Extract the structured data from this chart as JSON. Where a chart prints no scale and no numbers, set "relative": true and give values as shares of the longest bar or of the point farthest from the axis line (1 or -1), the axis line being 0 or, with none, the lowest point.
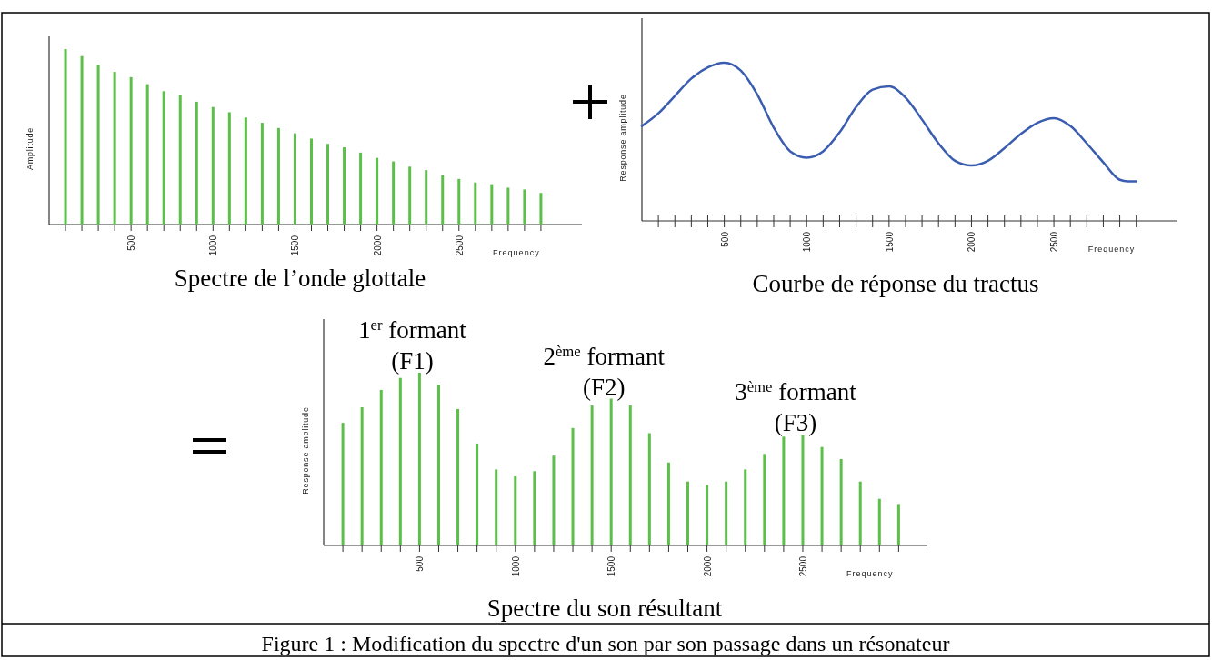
{
  "chart_data": [
    {
      "type": "bar",
      "title": "Spectre de l’onde glottale",
      "xlabel": "Frequency",
      "ylabel": "Amplitude",
      "relative": true,
      "color": "#5cbf4a",
      "xlim": [
        0,
        3250
      ],
      "x": [
        100,
        200,
        300,
        400,
        500,
        600,
        700,
        800,
        900,
        1000,
        1100,
        1200,
        1300,
        1400,
        1500,
        1600,
        1700,
        1800,
        1900,
        2000,
        2100,
        2200,
        2300,
        2400,
        2500,
        2600,
        2700,
        2800,
        2900,
        3000
      ],
      "values": [
        1,
        0.96,
        0.91,
        0.87,
        0.84,
        0.8,
        0.76,
        0.74,
        0.7,
        0.67,
        0.64,
        0.61,
        0.58,
        0.55,
        0.52,
        0.49,
        0.46,
        0.44,
        0.41,
        0.38,
        0.36,
        0.33,
        0.31,
        0.28,
        0.26,
        0.24,
        0.23,
        0.21,
        0.2,
        0.18
      ],
      "xticks": [
        {
          "value": 100,
          "label": null
        },
        {
          "value": 200,
          "label": null
        },
        {
          "value": 300,
          "label": null
        },
        {
          "value": 400,
          "label": null
        },
        500,
        {
          "value": 600,
          "label": null
        },
        {
          "value": 700,
          "label": null
        },
        {
          "value": 800,
          "label": null
        },
        {
          "value": 900,
          "label": null
        },
        1000,
        {
          "value": 1100,
          "label": null
        },
        {
          "value": 1200,
          "label": null
        },
        {
          "value": 1300,
          "label": null
        },
        {
          "value": 1400,
          "label": null
        },
        1500,
        {
          "value": 1600,
          "label": null
        },
        {
          "value": 1700,
          "label": null
        },
        {
          "value": 1800,
          "label": null
        },
        {
          "value": 1900,
          "label": null
        },
        2000,
        {
          "value": 2100,
          "label": null
        },
        {
          "value": 2200,
          "label": null
        },
        {
          "value": 2300,
          "label": null
        },
        {
          "value": 2400,
          "label": null
        },
        2500,
        {
          "value": 2600,
          "label": null
        },
        {
          "value": 2700,
          "label": null
        },
        {
          "value": 2800,
          "label": null
        },
        {
          "value": 2900,
          "label": null
        },
        {
          "value": 3000,
          "label": null
        }
      ]
    },
    {
      "type": "line",
      "title": "Courbe de réponse du tractus",
      "xlabel": "Frequency",
      "ylabel": "Response amplitude",
      "relative": true,
      "color": "#3a5db0",
      "xlim": [
        0,
        3250
      ],
      "x": [
        0,
        100,
        200,
        300,
        400,
        500,
        600,
        700,
        800,
        900,
        1000,
        1100,
        1200,
        1300,
        1400,
        1500,
        1600,
        1700,
        1800,
        1900,
        2000,
        2100,
        2200,
        2300,
        2400,
        2500,
        2600,
        2700,
        2800,
        2900,
        2950,
        3000
      ],
      "values": [
        0.6,
        0.68,
        0.79,
        0.9,
        0.97,
        1,
        0.95,
        0.8,
        0.59,
        0.44,
        0.4,
        0.44,
        0.56,
        0.72,
        0.83,
        0.85,
        0.78,
        0.64,
        0.49,
        0.38,
        0.35,
        0.38,
        0.46,
        0.55,
        0.62,
        0.65,
        0.6,
        0.49,
        0.37,
        0.26,
        0.25,
        0.25
      ],
      "xticks": [
        {
          "value": 100,
          "label": null
        },
        {
          "value": 200,
          "label": null
        },
        {
          "value": 300,
          "label": null
        },
        {
          "value": 400,
          "label": null
        },
        500,
        {
          "value": 600,
          "label": null
        },
        {
          "value": 700,
          "label": null
        },
        {
          "value": 800,
          "label": null
        },
        {
          "value": 900,
          "label": null
        },
        1000,
        {
          "value": 1100,
          "label": null
        },
        {
          "value": 1200,
          "label": null
        },
        {
          "value": 1300,
          "label": null
        },
        {
          "value": 1400,
          "label": null
        },
        1500,
        {
          "value": 1600,
          "label": null
        },
        {
          "value": 1700,
          "label": null
        },
        {
          "value": 1800,
          "label": null
        },
        {
          "value": 1900,
          "label": null
        },
        2000,
        {
          "value": 2100,
          "label": null
        },
        {
          "value": 2200,
          "label": null
        },
        {
          "value": 2300,
          "label": null
        },
        {
          "value": 2400,
          "label": null
        },
        2500,
        {
          "value": 2600,
          "label": null
        },
        {
          "value": 2700,
          "label": null
        },
        {
          "value": 2800,
          "label": null
        },
        {
          "value": 2900,
          "label": null
        },
        {
          "value": 3000,
          "label": null
        }
      ]
    },
    {
      "type": "bar",
      "title": "Spectre du son résultant",
      "xlabel": "Frequency",
      "ylabel": "Response amplitude",
      "relative": true,
      "color": "#5cbf4a",
      "xlim": [
        0,
        3150
      ],
      "x": [
        100,
        200,
        300,
        400,
        500,
        600,
        700,
        800,
        900,
        1000,
        1100,
        1200,
        1300,
        1400,
        1500,
        1600,
        1700,
        1800,
        1900,
        2000,
        2100,
        2200,
        2300,
        2400,
        2500,
        2600,
        2700,
        2800,
        2900,
        3000
      ],
      "values": [
        0.71,
        0.8,
        0.9,
        0.97,
        1,
        0.93,
        0.79,
        0.59,
        0.44,
        0.4,
        0.43,
        0.52,
        0.68,
        0.81,
        0.85,
        0.81,
        0.65,
        0.48,
        0.37,
        0.35,
        0.37,
        0.44,
        0.53,
        0.63,
        0.64,
        0.57,
        0.5,
        0.37,
        0.27,
        0.24
      ],
      "xticks": [
        {
          "value": 100,
          "label": null
        },
        {
          "value": 200,
          "label": null
        },
        {
          "value": 300,
          "label": null
        },
        {
          "value": 400,
          "label": null
        },
        500,
        {
          "value": 600,
          "label": null
        },
        {
          "value": 700,
          "label": null
        },
        {
          "value": 800,
          "label": null
        },
        {
          "value": 900,
          "label": null
        },
        1000,
        {
          "value": 1100,
          "label": null
        },
        {
          "value": 1200,
          "label": null
        },
        {
          "value": 1300,
          "label": null
        },
        {
          "value": 1400,
          "label": null
        },
        1500,
        {
          "value": 1600,
          "label": null
        },
        {
          "value": 1700,
          "label": null
        },
        {
          "value": 1800,
          "label": null
        },
        {
          "value": 1900,
          "label": null
        },
        2000,
        {
          "value": 2100,
          "label": null
        },
        {
          "value": 2200,
          "label": null
        },
        {
          "value": 2300,
          "label": null
        },
        {
          "value": 2400,
          "label": null
        },
        2500,
        {
          "value": 2600,
          "label": null
        },
        {
          "value": 2700,
          "label": null
        },
        {
          "value": 2800,
          "label": null
        },
        {
          "value": 2900,
          "label": null
        },
        {
          "value": 3000,
          "label": null
        }
      ],
      "annotations": [
        {
          "text": "1$^{er}$ formant\n(F1)",
          "x": 500,
          "y": 1
        },
        {
          "text": "2$^{ème}$ formant\n(F2)",
          "x": 1500,
          "y": 0.85
        },
        {
          "text": "3$^{ème}$ formant\n(F3)",
          "x": 2500,
          "y": 0.64
        },
        "Figure 1 : Modification du spectre d'un son par son passage dans un résonateur"
      ]
    }
  ]
}
